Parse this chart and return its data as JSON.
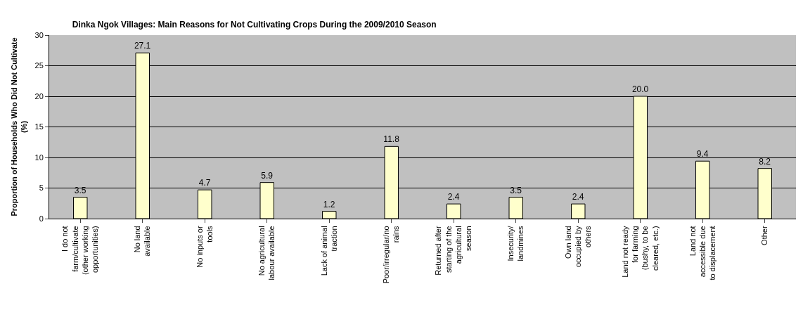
{
  "chart_data": {
    "type": "bar",
    "title": "Dinka Ngok Villages: Main Reasons for Not Cultivating Crops During the 2009/2010 Season",
    "ylabel": "Proportion of Households Who Did Not Cultivate\n(%)",
    "categories": [
      "I do not\nfarm/cultivate\n(other working\nopportunities)",
      "No land\navailable",
      "No inputs or\ntools",
      "No agricultural\nlabour available",
      "Lack of animal\ntraction",
      "Poor/irregular/no\nrains",
      "Returned after\nstarting of the\nagricultural\nseason",
      "Insecurity/\nlandmines",
      "Own land\noccupied by\nothers",
      "Land not ready\nfor farming\n(bushy, to be\ncleared, etc.)",
      "Land not\naccessible due\nto displacement",
      "Other"
    ],
    "values": [
      3.5,
      27.1,
      4.7,
      5.9,
      1.2,
      11.8,
      2.4,
      3.5,
      2.4,
      20.0,
      9.4,
      8.2
    ],
    "value_labels": [
      "3.5",
      "27.1",
      "4.7",
      "5.9",
      "1.2",
      "11.8",
      "2.4",
      "3.5",
      "2.4",
      "20.0",
      "9.4",
      "8.2"
    ],
    "color": "#ffffcc",
    "ylim": [
      0,
      30
    ],
    "yticks": [
      0,
      5,
      10,
      15,
      20,
      25,
      30
    ],
    "grid": "y"
  }
}
